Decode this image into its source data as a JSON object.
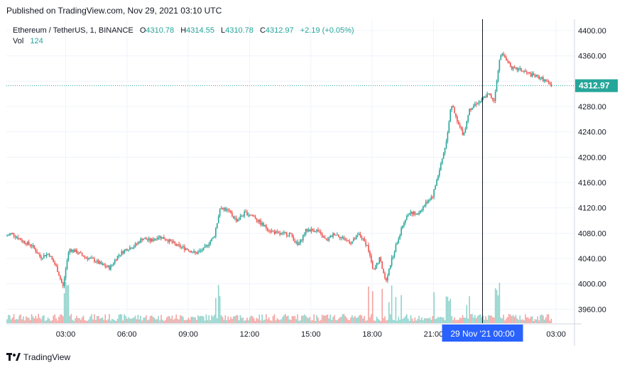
{
  "header": {
    "published_text": "Published on TradingView.com, Nov 29, 2021 03:10 UTC"
  },
  "legend": {
    "symbol_text": "Ethereum / TetherUS, 1, BINANCE",
    "open_label": "O",
    "open_value": "4310.78",
    "high_label": "H",
    "high_value": "4314.55",
    "low_label": "L",
    "low_value": "4310.78",
    "close_label": "C",
    "close_value": "4312.97",
    "change_value": "+2.19 (+0.05%)",
    "vol_label": "Vol",
    "vol_value": "124"
  },
  "footer": {
    "brand": "TradingView"
  },
  "colors": {
    "up": "#26a69a",
    "down": "#ef5350",
    "vol_up": "#8fd3cb",
    "vol_down": "#f5a3a1",
    "crosshair": "#131722",
    "badge": "#2962ff",
    "grid": "#f0f3fa",
    "price_line": "#26a69a"
  },
  "chart_data": {
    "type": "candlestick",
    "symbol": "Ethereum / TetherUS, 1, BINANCE",
    "y_ticks": [
      4400,
      4360,
      4320,
      4280,
      4240,
      4200,
      4160,
      4120,
      4080,
      4040,
      4000,
      3960
    ],
    "y_tick_labels": [
      "4400.00",
      "4360.00",
      "4280.00",
      "4240.00",
      "4200.00",
      "4160.00",
      "4120.00",
      "4080.00",
      "4040.00",
      "4000.00",
      "3960.00"
    ],
    "ylim": [
      3938,
      4418
    ],
    "x_tick_labels": [
      "03:00",
      "06:00",
      "09:00",
      "12:00",
      "15:00",
      "18:00",
      "21:00",
      "03:00"
    ],
    "x_tick_hours": [
      3,
      6,
      9,
      12,
      15,
      18,
      21,
      27
    ],
    "xlim_hours": [
      0.1,
      27.9
    ],
    "crosshair_hour": 23.4,
    "crosshair_label": "29 Nov '21   00:00",
    "last_price": 4312.97,
    "last_price_label": "4312.97",
    "price_path": [
      [
        0.1,
        4075
      ],
      [
        0.4,
        4080
      ],
      [
        0.9,
        4068
      ],
      [
        1.4,
        4060
      ],
      [
        1.8,
        4042
      ],
      [
        2.2,
        4048
      ],
      [
        2.6,
        4025
      ],
      [
        2.9,
        3995
      ],
      [
        3.2,
        4055
      ],
      [
        3.6,
        4050
      ],
      [
        4.0,
        4042
      ],
      [
        4.4,
        4038
      ],
      [
        4.8,
        4030
      ],
      [
        5.2,
        4025
      ],
      [
        5.6,
        4045
      ],
      [
        6.0,
        4055
      ],
      [
        6.4,
        4060
      ],
      [
        6.8,
        4072
      ],
      [
        7.2,
        4068
      ],
      [
        7.6,
        4075
      ],
      [
        8.0,
        4070
      ],
      [
        8.5,
        4060
      ],
      [
        9.0,
        4055
      ],
      [
        9.4,
        4048
      ],
      [
        9.8,
        4055
      ],
      [
        10.3,
        4075
      ],
      [
        10.6,
        4122
      ],
      [
        11.0,
        4115
      ],
      [
        11.4,
        4100
      ],
      [
        11.8,
        4112
      ],
      [
        12.2,
        4108
      ],
      [
        12.6,
        4095
      ],
      [
        13.0,
        4085
      ],
      [
        13.5,
        4078
      ],
      [
        14.0,
        4080
      ],
      [
        14.4,
        4060
      ],
      [
        14.8,
        4085
      ],
      [
        15.3,
        4085
      ],
      [
        15.8,
        4068
      ],
      [
        16.2,
        4080
      ],
      [
        16.6,
        4072
      ],
      [
        17.0,
        4065
      ],
      [
        17.4,
        4078
      ],
      [
        17.8,
        4060
      ],
      [
        18.1,
        4020
      ],
      [
        18.4,
        4040
      ],
      [
        18.7,
        4005
      ],
      [
        19.0,
        4040
      ],
      [
        19.3,
        4070
      ],
      [
        19.6,
        4100
      ],
      [
        19.9,
        4115
      ],
      [
        20.2,
        4108
      ],
      [
        20.6,
        4125
      ],
      [
        21.0,
        4140
      ],
      [
        21.4,
        4190
      ],
      [
        21.7,
        4230
      ],
      [
        21.9,
        4285
      ],
      [
        22.2,
        4255
      ],
      [
        22.5,
        4235
      ],
      [
        22.8,
        4275
      ],
      [
        23.1,
        4285
      ],
      [
        23.4,
        4290
      ],
      [
        23.7,
        4300
      ],
      [
        24.0,
        4290
      ],
      [
        24.3,
        4365
      ],
      [
        24.6,
        4355
      ],
      [
        24.9,
        4340
      ],
      [
        25.3,
        4338
      ],
      [
        25.8,
        4330
      ],
      [
        26.3,
        4325
      ],
      [
        26.8,
        4313
      ]
    ]
  }
}
